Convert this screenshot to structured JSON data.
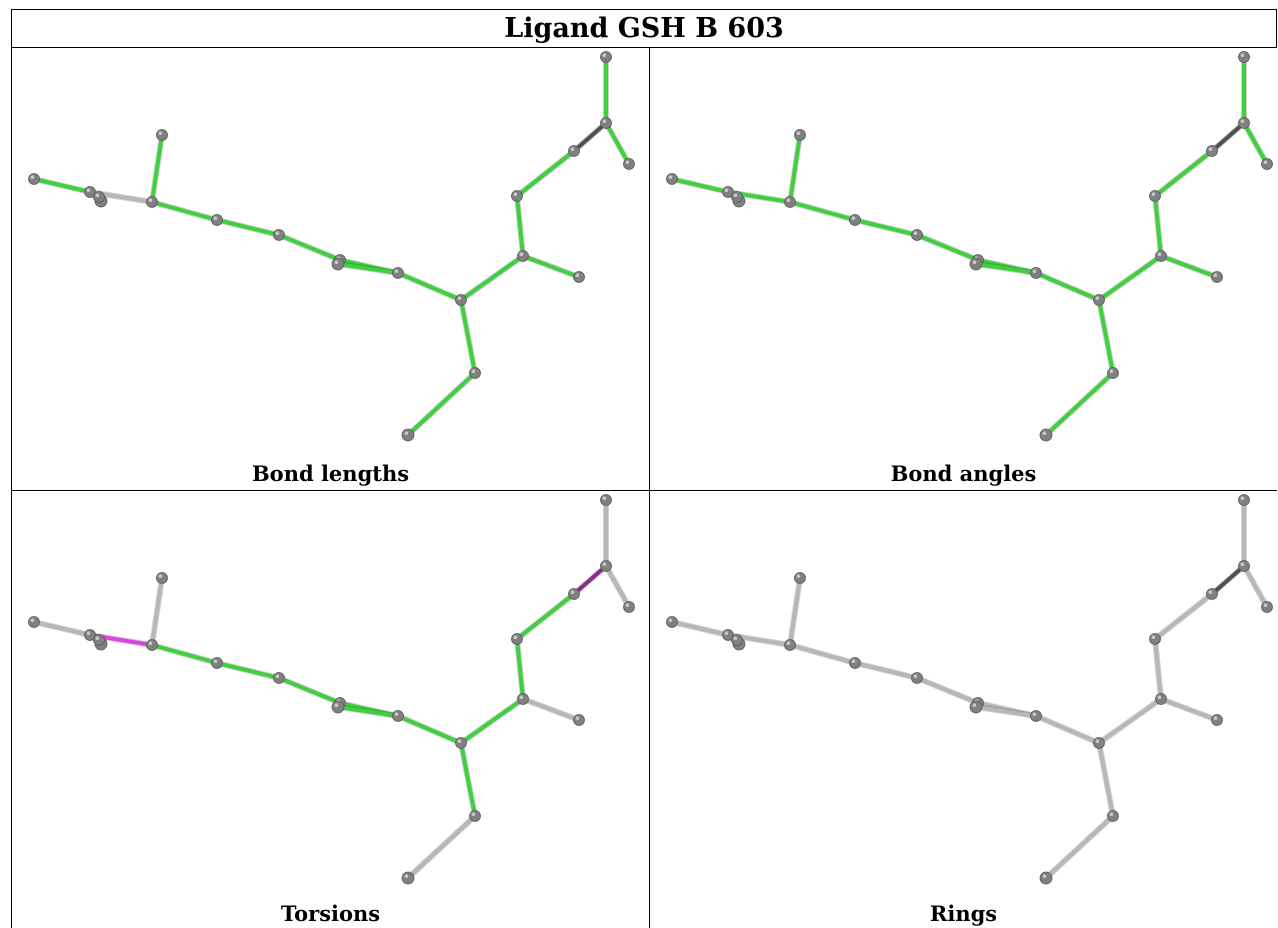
{
  "title": "Ligand GSH B 603",
  "panels": [
    {
      "caption": "Bond lengths"
    },
    {
      "caption": "Bond angles"
    },
    {
      "caption": "Torsions"
    },
    {
      "caption": "Rings"
    }
  ],
  "colors": {
    "green": "#3fcf3f",
    "magenta": "#e040e0",
    "purple": "#8e2a8e",
    "dark": "#505050",
    "gray": "#b7b7b7",
    "atom": "#808080"
  }
}
